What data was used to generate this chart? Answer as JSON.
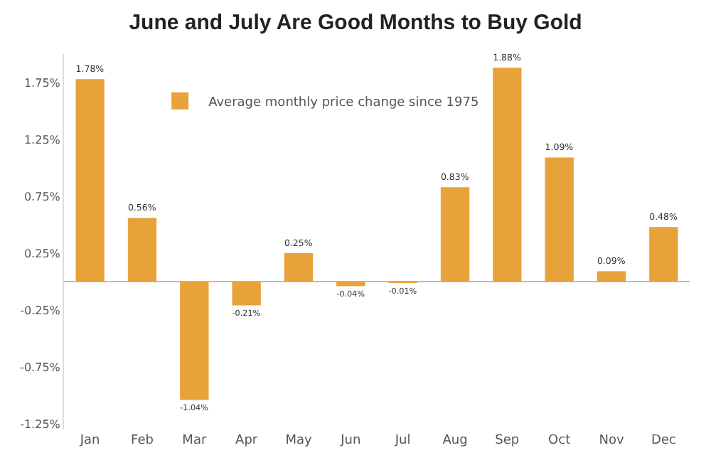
{
  "chart_data": {
    "type": "bar",
    "title": "June and July Are Good Months to Buy Gold",
    "categories": [
      "Jan",
      "Feb",
      "Mar",
      "Apr",
      "May",
      "Jun",
      "Jul",
      "Aug",
      "Sep",
      "Oct",
      "Nov",
      "Dec"
    ],
    "series": [
      {
        "name": "Average monthly price change since 1975",
        "color": "#e8a23a",
        "values": [
          1.78,
          0.56,
          -1.04,
          -0.21,
          0.25,
          -0.04,
          -0.01,
          0.83,
          1.88,
          1.09,
          0.09,
          0.48
        ],
        "value_labels": [
          "1.78%",
          "0.56%",
          "-1.04%",
          "-0.21%",
          "0.25%",
          "-0.04%",
          "-0.01%",
          "0.83%",
          "1.88%",
          "1.09%",
          "0.09%",
          "0.48%"
        ]
      }
    ],
    "ylim": [
      -1.3,
      2.0
    ],
    "yticks": [
      {
        "value": -1.25,
        "label": "-1.25%"
      },
      {
        "value": -0.75,
        "label": "-0.75%"
      },
      {
        "value": -0.25,
        "label": "-0.25%"
      },
      {
        "value": 0.25,
        "label": "0.25%"
      },
      {
        "value": 0.75,
        "label": "0.75%"
      },
      {
        "value": 1.25,
        "label": "1.25%"
      },
      {
        "value": 1.75,
        "label": "1.75%"
      }
    ],
    "grid": false,
    "legend": "top"
  }
}
